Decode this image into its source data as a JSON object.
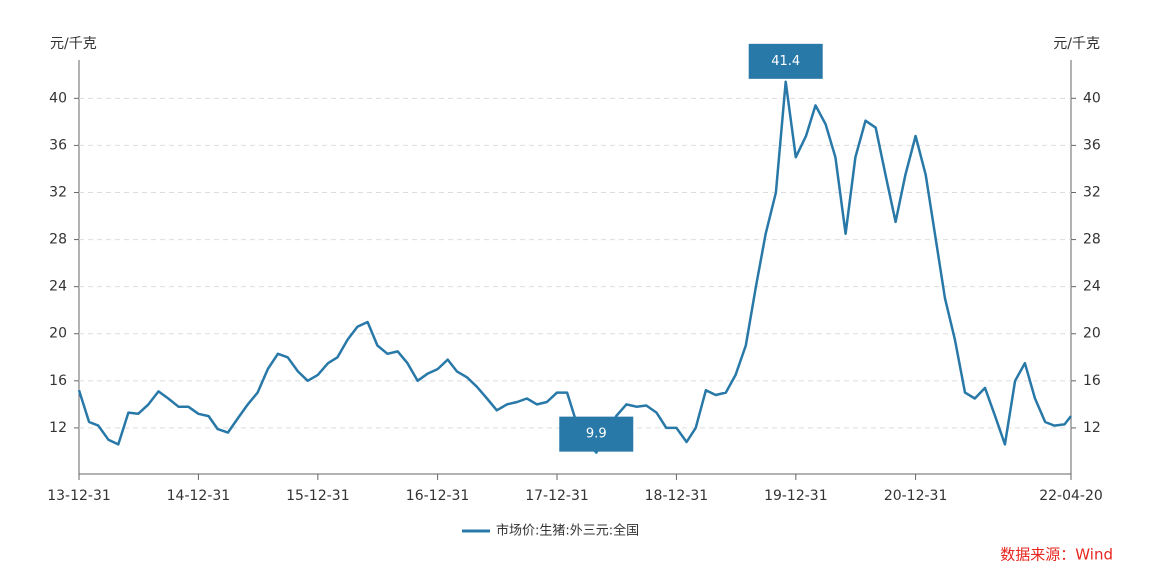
{
  "chart_data": {
    "type": "line",
    "y_label": "元/千克",
    "y2_label": "元/千克",
    "source": "数据来源：Wind",
    "x": [
      "13-12-31",
      "14-01-31",
      "14-02-28",
      "14-03-31",
      "14-04-30",
      "14-05-31",
      "14-06-30",
      "14-07-31",
      "14-08-31",
      "14-09-30",
      "14-10-31",
      "14-11-30",
      "14-12-31",
      "15-01-31",
      "15-02-28",
      "15-03-31",
      "15-04-30",
      "15-05-31",
      "15-06-30",
      "15-07-31",
      "15-08-31",
      "15-09-30",
      "15-10-31",
      "15-11-30",
      "15-12-31",
      "16-01-31",
      "16-02-29",
      "16-03-31",
      "16-04-30",
      "16-05-31",
      "16-06-30",
      "16-07-31",
      "16-08-31",
      "16-09-30",
      "16-10-31",
      "16-11-30",
      "16-12-31",
      "17-01-31",
      "17-02-28",
      "17-03-31",
      "17-04-30",
      "17-05-31",
      "17-06-30",
      "17-07-31",
      "17-08-31",
      "17-09-30",
      "17-10-31",
      "17-11-30",
      "17-12-31",
      "18-01-31",
      "18-02-28",
      "18-03-31",
      "18-04-30",
      "18-05-31",
      "18-06-30",
      "18-07-31",
      "18-08-31",
      "18-09-30",
      "18-10-31",
      "18-11-30",
      "18-12-31",
      "19-01-31",
      "19-02-28",
      "19-03-31",
      "19-04-30",
      "19-05-31",
      "19-06-30",
      "19-07-31",
      "19-08-31",
      "19-09-30",
      "19-10-31",
      "19-11-30",
      "19-12-31",
      "20-01-31",
      "20-02-29",
      "20-03-31",
      "20-04-30",
      "20-05-31",
      "20-06-30",
      "20-07-31",
      "20-08-31",
      "20-09-30",
      "20-10-31",
      "20-11-30",
      "20-12-31",
      "21-01-31",
      "21-02-28",
      "21-03-31",
      "21-04-30",
      "21-05-31",
      "21-06-30",
      "21-07-31",
      "21-08-31",
      "21-09-30",
      "21-10-31",
      "21-11-30",
      "21-12-31",
      "22-01-31",
      "22-02-28",
      "22-03-31",
      "22-04-20"
    ],
    "series": [
      {
        "name": "市场价:生猪:外三元:全国",
        "color": "#2878a8",
        "values": [
          15.2,
          12.5,
          12.2,
          11.0,
          10.6,
          13.3,
          13.2,
          14.0,
          15.1,
          14.5,
          13.8,
          13.8,
          13.2,
          13.0,
          11.9,
          11.6,
          12.8,
          14.0,
          15.0,
          17.0,
          18.3,
          18.0,
          16.8,
          16.0,
          16.5,
          17.5,
          18.0,
          19.5,
          20.6,
          21.0,
          19.0,
          18.3,
          18.5,
          17.5,
          16.0,
          16.6,
          17.0,
          17.8,
          16.8,
          16.3,
          15.5,
          14.5,
          13.5,
          14.0,
          14.2,
          14.5,
          14.0,
          14.2,
          15.0,
          15.0,
          12.5,
          11.0,
          9.9,
          11.5,
          13.0,
          14.0,
          13.8,
          13.9,
          13.3,
          12.0,
          12.0,
          10.8,
          12.0,
          15.2,
          14.8,
          15.0,
          16.5,
          19.0,
          24.0,
          28.5,
          32.0,
          41.4,
          35.0,
          36.8,
          39.4,
          37.8,
          35.0,
          28.5,
          35.0,
          38.1,
          37.5,
          33.5,
          29.5,
          33.5,
          36.8,
          33.5,
          28.5,
          23.0,
          19.5,
          15.0,
          14.5,
          15.4,
          13.0,
          10.6,
          16.0,
          17.5,
          14.5,
          12.5,
          12.2,
          12.3,
          13.0
        ]
      }
    ],
    "annotations": [
      {
        "x": "19-11-30",
        "y": 41.4,
        "position": "above"
      },
      {
        "x": "18-04-30",
        "y": 9.9,
        "position": "below"
      }
    ],
    "xlim": [
      "13-12-31",
      "22-04-20"
    ],
    "xticks": [
      "13-12-31",
      "14-12-31",
      "15-12-31",
      "16-12-31",
      "17-12-31",
      "18-12-31",
      "19-12-31",
      "20-12-31",
      "22-04-20"
    ],
    "ylim": [
      8,
      43
    ],
    "yticks": [
      12,
      16,
      20,
      24,
      28,
      32,
      36,
      40
    ],
    "y2lim": [
      8,
      43
    ],
    "y2ticks": [
      12,
      16,
      20,
      24,
      28,
      32,
      36,
      40
    ],
    "grid": true,
    "legend": "bottom"
  }
}
